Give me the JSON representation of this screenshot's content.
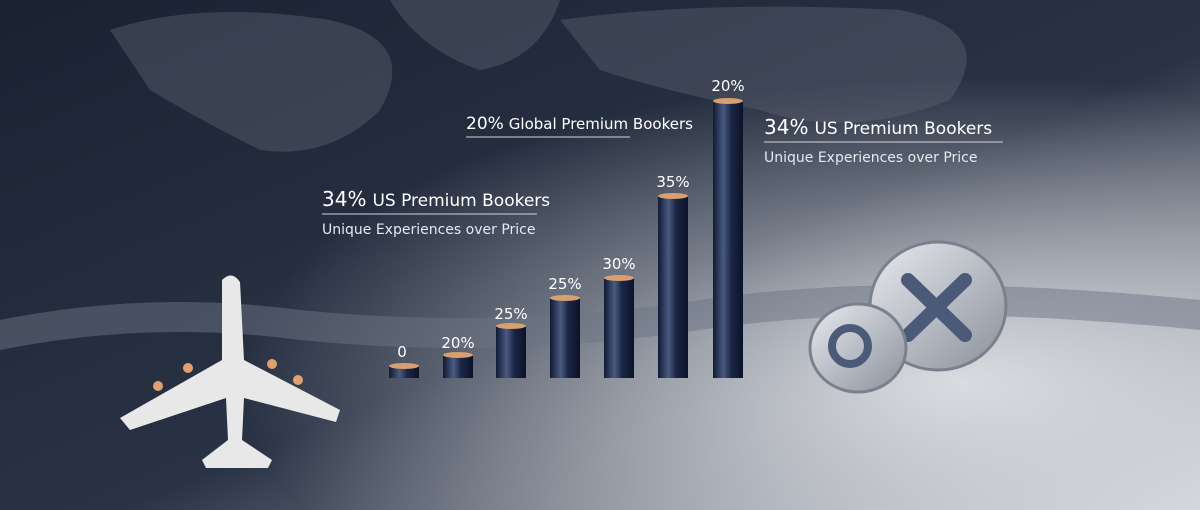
{
  "bar_labels": [
    "0",
    "20%",
    "25%",
    "25%",
    "30%",
    "35%",
    "20%"
  ],
  "callouts": [
    {
      "figure": "34%",
      "headline": "US Premium Bookers",
      "subline": "Unique Experiences over Price"
    },
    {
      "figure": "20%",
      "headline": "Global Premium Bookers"
    },
    {
      "figure": "34%",
      "headline": "US Premium Bookers",
      "subline": "Unique Experiences over Price"
    }
  ]
}
